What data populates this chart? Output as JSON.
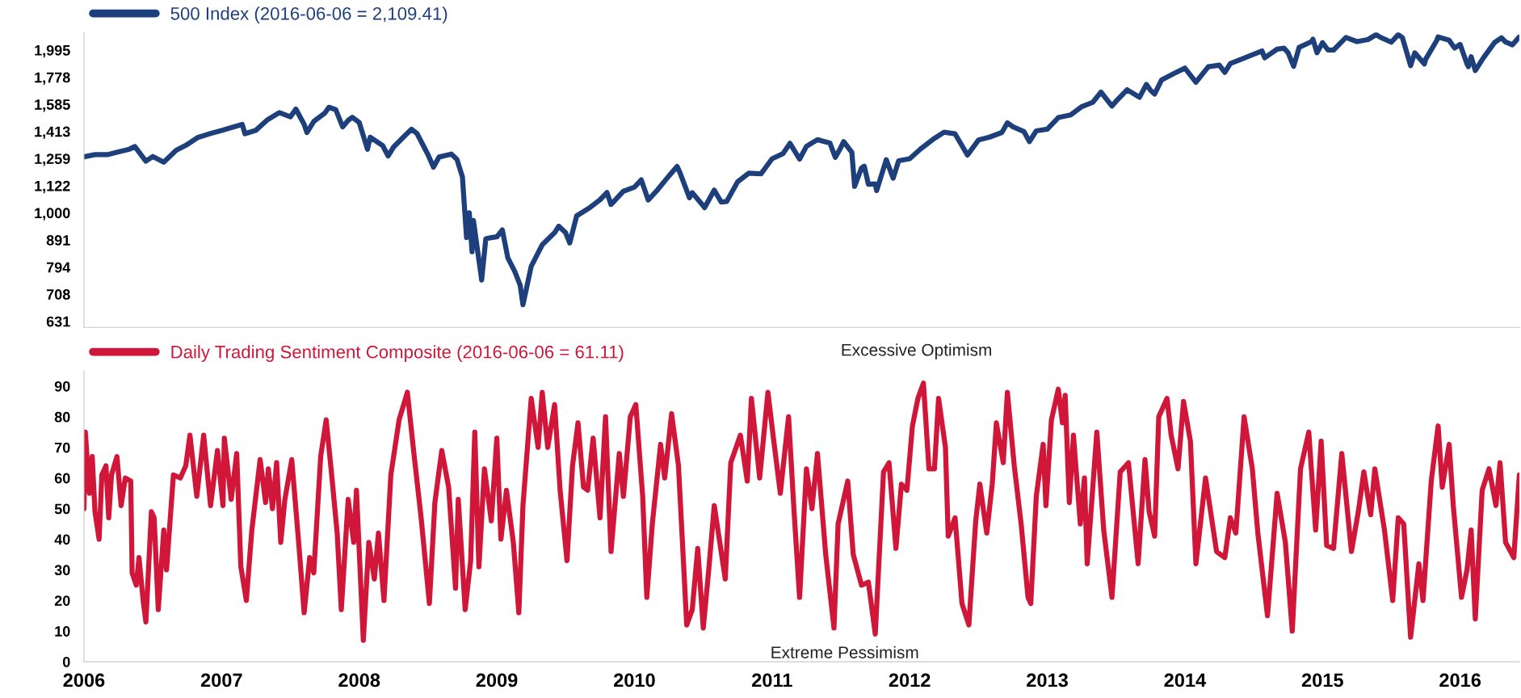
{
  "chart_data": [
    {
      "type": "line",
      "log": true,
      "legend": "top left",
      "tick_labels": "y",
      "grid": false,
      "xlim": [
        2006,
        2016.43
      ],
      "ylim": [
        615,
        2150
      ],
      "yticks": [
        631,
        708,
        794,
        891,
        {
          "value": 1000,
          "label": "1,000"
        },
        {
          "value": 1122,
          "label": "1,122"
        },
        {
          "value": 1259,
          "label": "1,259"
        },
        {
          "value": 1413,
          "label": "1,413"
        },
        {
          "value": 1585,
          "label": "1,585"
        },
        {
          "value": 1778,
          "label": "1,778"
        },
        {
          "value": 1995,
          "label": "1,995"
        }
      ],
      "series": [
        {
          "name": "500 Index (2016-06-06 = 2,109.41)",
          "color": "#1d3f7c",
          "x": [
            2006.0,
            2006.08,
            2006.17,
            2006.25,
            2006.33,
            2006.37,
            2006.45,
            2006.5,
            2006.58,
            2006.67,
            2006.75,
            2006.83,
            2006.92,
            2007.0,
            2007.08,
            2007.15,
            2007.17,
            2007.25,
            2007.33,
            2007.42,
            2007.5,
            2007.54,
            2007.6,
            2007.62,
            2007.67,
            2007.75,
            2007.78,
            2007.83,
            2007.88,
            2007.92,
            2007.95,
            2008.0,
            2008.06,
            2008.08,
            2008.17,
            2008.21,
            2008.25,
            2008.33,
            2008.38,
            2008.42,
            2008.5,
            2008.54,
            2008.58,
            2008.67,
            2008.71,
            2008.75,
            2008.78,
            2008.8,
            2008.82,
            2008.83,
            2008.89,
            2008.92,
            2008.96,
            2009.0,
            2009.04,
            2009.08,
            2009.13,
            2009.17,
            2009.19,
            2009.25,
            2009.33,
            2009.42,
            2009.45,
            2009.5,
            2009.53,
            2009.58,
            2009.67,
            2009.75,
            2009.8,
            2009.83,
            2009.92,
            2010.0,
            2010.05,
            2010.1,
            2010.17,
            2010.25,
            2010.31,
            2010.33,
            2010.4,
            2010.42,
            2010.5,
            2010.51,
            2010.58,
            2010.63,
            2010.67,
            2010.75,
            2010.83,
            2010.92,
            2011.0,
            2011.08,
            2011.13,
            2011.2,
            2011.25,
            2011.33,
            2011.42,
            2011.46,
            2011.5,
            2011.52,
            2011.58,
            2011.6,
            2011.65,
            2011.67,
            2011.7,
            2011.75,
            2011.76,
            2011.83,
            2011.88,
            2011.92,
            2012.0,
            2012.08,
            2012.17,
            2012.25,
            2012.33,
            2012.42,
            2012.5,
            2012.58,
            2012.67,
            2012.71,
            2012.75,
            2012.83,
            2012.87,
            2012.92,
            2013.0,
            2013.08,
            2013.17,
            2013.25,
            2013.33,
            2013.39,
            2013.47,
            2013.5,
            2013.58,
            2013.67,
            2013.72,
            2013.75,
            2013.78,
            2013.83,
            2013.92,
            2014.0,
            2014.08,
            2014.17,
            2014.25,
            2014.29,
            2014.33,
            2014.42,
            2014.5,
            2014.56,
            2014.58,
            2014.67,
            2014.72,
            2014.75,
            2014.79,
            2014.83,
            2014.92,
            2014.93,
            2014.96,
            2015.0,
            2015.04,
            2015.08,
            2015.17,
            2015.25,
            2015.33,
            2015.39,
            2015.42,
            2015.5,
            2015.55,
            2015.58,
            2015.64,
            2015.67,
            2015.74,
            2015.75,
            2015.83,
            2015.84,
            2015.92,
            2015.96,
            2016.0,
            2016.05,
            2016.06,
            2016.08,
            2016.11,
            2016.17,
            2016.25,
            2016.3,
            2016.33,
            2016.38,
            2016.42,
            2016.43
          ],
          "values": [
            1268,
            1280,
            1280,
            1295,
            1310,
            1325,
            1245,
            1270,
            1240,
            1304,
            1336,
            1378,
            1400,
            1418,
            1438,
            1455,
            1399,
            1420,
            1482,
            1530,
            1503,
            1553,
            1455,
            1406,
            1474,
            1527,
            1565,
            1549,
            1440,
            1481,
            1500,
            1468,
            1310,
            1378,
            1331,
            1273,
            1322,
            1386,
            1426,
            1400,
            1280,
            1214,
            1267,
            1283,
            1255,
            1165,
            900,
            1000,
            848,
            968,
            752,
            896,
            900,
            903,
            930,
            826,
            780,
            735,
            677,
            797,
            873,
            919,
            945,
            919,
            880,
            987,
            1020,
            1057,
            1090,
            1036,
            1096,
            1115,
            1150,
            1056,
            1104,
            1169,
            1217,
            1187,
            1066,
            1089,
            1030,
            1022,
            1101,
            1047,
            1049,
            1141,
            1183,
            1180,
            1258,
            1286,
            1343,
            1256,
            1326,
            1364,
            1345,
            1265,
            1320,
            1353,
            1292,
            1119,
            1210,
            1219,
            1129,
            1131,
            1099,
            1253,
            1158,
            1247,
            1258,
            1312,
            1366,
            1408,
            1398,
            1278,
            1362,
            1379,
            1406,
            1465,
            1441,
            1412,
            1353,
            1416,
            1426,
            1498,
            1515,
            1569,
            1598,
            1669,
            1573,
            1606,
            1686,
            1633,
            1725,
            1682,
            1656,
            1757,
            1806,
            1848,
            1741,
            1859,
            1872,
            1815,
            1884,
            1924,
            1960,
            1988,
            1931,
            2003,
            2011,
            1972,
            1862,
            2018,
            2068,
            2090,
            1972,
            2059,
            1995,
            1995,
            2105,
            2068,
            2086,
            2131,
            2107,
            2063,
            2130,
            2104,
            1868,
            1972,
            1881,
            1920,
            2079,
            2109,
            2080,
            2012,
            2044,
            1880,
            1860,
            1940,
            1829,
            1932,
            2060,
            2102,
            2065,
            2040,
            2097,
            2109.41
          ]
        }
      ]
    },
    {
      "type": "line",
      "legend": "top left",
      "grid": false,
      "xlim": [
        2006,
        2016.43
      ],
      "ylim": [
        0,
        95
      ],
      "xticks": [
        2006,
        2007,
        2008,
        2009,
        2010,
        2011,
        2012,
        2013,
        2014,
        2015,
        2016
      ],
      "yticks": [
        0,
        10,
        20,
        30,
        40,
        50,
        60,
        70,
        80,
        90
      ],
      "annotations": [
        "Excessive Optimism",
        "Extreme Pessimism"
      ],
      "series": [
        {
          "name": "Daily Trading Sentiment Composite (2016-06-06 = 61.11)",
          "color": "#d0173a",
          "x": [
            2006.0,
            2006.01,
            2006.04,
            2006.06,
            2006.08,
            2006.11,
            2006.13,
            2006.16,
            2006.18,
            2006.2,
            2006.24,
            2006.27,
            2006.3,
            2006.34,
            2006.35,
            2006.38,
            2006.4,
            2006.43,
            2006.45,
            2006.49,
            2006.51,
            2006.54,
            2006.58,
            2006.6,
            2006.65,
            2006.7,
            2006.74,
            2006.77,
            2006.82,
            2006.87,
            2006.92,
            2006.97,
            2007.01,
            2007.02,
            2007.07,
            2007.11,
            2007.14,
            2007.18,
            2007.22,
            2007.28,
            2007.32,
            2007.34,
            2007.37,
            2007.4,
            2007.43,
            2007.46,
            2007.51,
            2007.56,
            2007.6,
            2007.64,
            2007.67,
            2007.72,
            2007.76,
            2007.8,
            2007.84,
            2007.87,
            2007.92,
            2007.96,
            2007.98,
            2008.03,
            2008.07,
            2008.11,
            2008.14,
            2008.18,
            2008.23,
            2008.29,
            2008.35,
            2008.4,
            2008.45,
            2008.51,
            2008.55,
            2008.6,
            2008.65,
            2008.7,
            2008.72,
            2008.77,
            2008.81,
            2008.84,
            2008.87,
            2008.91,
            2008.96,
            2009.0,
            2009.03,
            2009.07,
            2009.12,
            2009.16,
            2009.19,
            2009.25,
            2009.3,
            2009.33,
            2009.37,
            2009.42,
            2009.46,
            2009.51,
            2009.55,
            2009.59,
            2009.63,
            2009.66,
            2009.7,
            2009.75,
            2009.79,
            2009.83,
            2009.89,
            2009.92,
            2009.97,
            2010.01,
            2010.06,
            2010.09,
            2010.13,
            2010.19,
            2010.22,
            2010.27,
            2010.32,
            2010.38,
            2010.42,
            2010.46,
            2010.5,
            2010.54,
            2010.58,
            2010.66,
            2010.7,
            2010.77,
            2010.82,
            2010.85,
            2010.91,
            2010.97,
            2011.01,
            2011.06,
            2011.12,
            2011.16,
            2011.2,
            2011.25,
            2011.29,
            2011.33,
            2011.39,
            2011.45,
            2011.48,
            2011.55,
            2011.59,
            2011.65,
            2011.7,
            2011.75,
            2011.81,
            2011.85,
            2011.9,
            2011.94,
            2011.98,
            2012.02,
            2012.06,
            2012.1,
            2012.14,
            2012.18,
            2012.21,
            2012.26,
            2012.28,
            2012.33,
            2012.38,
            2012.43,
            2012.48,
            2012.51,
            2012.56,
            2012.6,
            2012.63,
            2012.68,
            2012.71,
            2012.76,
            2012.81,
            2012.86,
            2012.88,
            2012.92,
            2012.97,
            2012.99,
            2013.03,
            2013.08,
            2013.11,
            2013.13,
            2013.16,
            2013.19,
            2013.24,
            2013.27,
            2013.29,
            2013.36,
            2013.41,
            2013.47,
            2013.53,
            2013.59,
            2013.66,
            2013.71,
            2013.74,
            2013.78,
            2013.81,
            2013.87,
            2013.9,
            2013.95,
            2013.99,
            2014.04,
            2014.08,
            2014.15,
            2014.18,
            2014.23,
            2014.29,
            2014.33,
            2014.37,
            2014.43,
            2014.49,
            2014.53,
            2014.6,
            2014.67,
            2014.73,
            2014.78,
            2014.84,
            2014.9,
            2014.95,
            2014.99,
            2015.03,
            2015.08,
            2015.14,
            2015.21,
            2015.26,
            2015.3,
            2015.35,
            2015.38,
            2015.45,
            2015.51,
            2015.55,
            2015.59,
            2015.64,
            2015.7,
            2015.73,
            2015.79,
            2015.84,
            2015.87,
            2015.92,
            2015.95,
            2016.01,
            2016.05,
            2016.08,
            2016.11,
            2016.16,
            2016.21,
            2016.26,
            2016.29,
            2016.33,
            2016.39,
            2016.43
          ],
          "values": [
            50,
            75,
            55,
            67,
            49,
            40,
            61,
            64,
            47,
            61,
            67,
            51,
            60,
            59,
            29,
            25,
            34,
            20,
            13,
            49,
            47,
            17,
            43,
            30,
            61,
            60,
            64,
            74,
            54,
            74,
            51,
            69,
            51,
            73,
            53,
            68,
            31,
            20,
            43,
            66,
            52,
            63,
            50,
            65,
            39,
            53,
            66,
            39,
            16,
            34,
            29,
            67,
            79,
            61,
            42,
            17,
            53,
            39,
            56,
            7,
            39,
            27,
            42,
            20,
            61,
            79,
            88,
            67,
            47,
            19,
            52,
            69,
            57,
            24,
            53,
            17,
            33,
            75,
            31,
            63,
            46,
            73,
            40,
            56,
            39,
            16,
            51,
            86,
            70,
            88,
            70,
            84,
            56,
            33,
            64,
            78,
            57,
            56,
            73,
            47,
            80,
            36,
            68,
            54,
            80,
            84,
            54,
            21,
            45,
            71,
            60,
            81,
            64,
            12,
            17,
            37,
            11,
            30,
            51,
            27,
            65,
            74,
            59,
            86,
            60,
            88,
            73,
            55,
            80,
            49,
            21,
            63,
            50,
            68,
            35,
            11,
            45,
            59,
            35,
            25,
            26,
            9,
            62,
            65,
            37,
            58,
            56,
            77,
            86,
            91,
            63,
            63,
            86,
            70,
            41,
            47,
            19,
            12,
            46,
            58,
            42,
            58,
            78,
            65,
            88,
            64,
            45,
            21,
            19,
            54,
            71,
            51,
            79,
            89,
            78,
            87,
            52,
            74,
            45,
            60,
            32,
            75,
            43,
            21,
            62,
            65,
            32,
            66,
            49,
            41,
            80,
            86,
            74,
            63,
            85,
            72,
            32,
            60,
            51,
            36,
            34,
            47,
            42,
            80,
            63,
            42,
            15,
            55,
            39,
            10,
            63,
            75,
            43,
            72,
            38,
            37,
            68,
            36,
            49,
            62,
            48,
            63,
            43,
            20,
            47,
            45,
            8,
            32,
            20,
            59,
            77,
            57,
            71,
            51,
            21,
            30,
            43,
            14,
            56,
            63,
            51,
            65,
            39,
            34,
            61
          ]
        }
      ]
    }
  ]
}
